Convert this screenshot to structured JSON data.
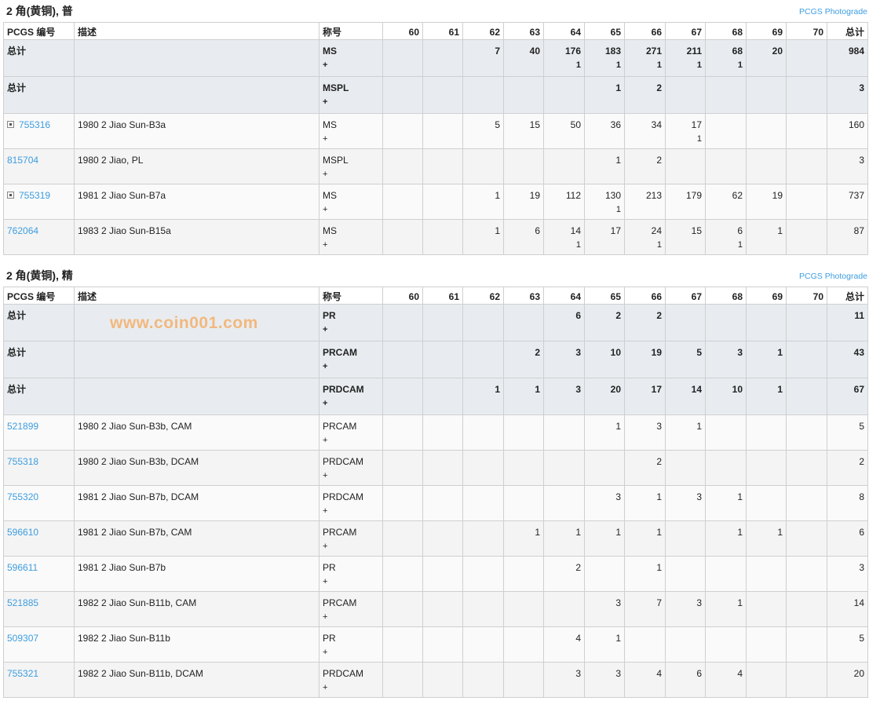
{
  "headers": [
    "PCGS 编号",
    "描述",
    "称号",
    "60",
    "61",
    "62",
    "63",
    "64",
    "65",
    "66",
    "67",
    "68",
    "69",
    "70",
    "总计"
  ],
  "photograde_label": "PCGS Photograde",
  "watermark": "www.coin001.com",
  "colors": {
    "link": "#3d9de0",
    "total_row_bg": "#e8ecf0",
    "watermark": "#f89632"
  },
  "sections": [
    {
      "title": "2 角(黄铜), 普",
      "rows": [
        {
          "type": "total",
          "id": "总计",
          "desc": "",
          "designation": "MS",
          "dplus": "+",
          "main": [
            "",
            "",
            "7",
            "40",
            "176",
            "183",
            "271",
            "211",
            "68",
            "20",
            ""
          ],
          "plus": [
            "",
            "",
            "",
            "",
            "1",
            "1",
            "1",
            "1",
            "1",
            "",
            ""
          ],
          "total": "984"
        },
        {
          "type": "total",
          "id": "总计",
          "desc": "",
          "designation": "MSPL",
          "dplus": "+",
          "main": [
            "",
            "",
            "",
            "",
            "",
            "1",
            "2",
            "",
            "",
            "",
            ""
          ],
          "plus": [
            "",
            "",
            "",
            "",
            "",
            "",
            "",
            "",
            "",
            "",
            ""
          ],
          "total": "3"
        },
        {
          "type": "data",
          "id": "755316",
          "expand": true,
          "desc": "1980 2 Jiao Sun-B3a",
          "designation": "MS",
          "dplus": "+",
          "main": [
            "",
            "",
            "5",
            "15",
            "50",
            "36",
            "34",
            "17",
            "",
            "",
            ""
          ],
          "plus": [
            "",
            "",
            "",
            "",
            "",
            "",
            "",
            "1",
            "",
            "",
            ""
          ],
          "total": "160"
        },
        {
          "type": "data",
          "id": "815704",
          "expand": false,
          "desc": "1980 2 Jiao, PL",
          "designation": "MSPL",
          "dplus": "+",
          "main": [
            "",
            "",
            "",
            "",
            "",
            "1",
            "2",
            "",
            "",
            "",
            ""
          ],
          "plus": [
            "",
            "",
            "",
            "",
            "",
            "",
            "",
            "",
            "",
            "",
            ""
          ],
          "total": "3"
        },
        {
          "type": "data",
          "id": "755319",
          "expand": true,
          "desc": "1981 2 Jiao Sun-B7a",
          "designation": "MS",
          "dplus": "+",
          "main": [
            "",
            "",
            "1",
            "19",
            "112",
            "130",
            "213",
            "179",
            "62",
            "19",
            ""
          ],
          "plus": [
            "",
            "",
            "",
            "",
            "",
            "1",
            "",
            "",
            "",
            "",
            ""
          ],
          "total": "737"
        },
        {
          "type": "data",
          "id": "762064",
          "expand": false,
          "desc": "1983 2 Jiao Sun-B15a",
          "designation": "MS",
          "dplus": "+",
          "main": [
            "",
            "",
            "1",
            "6",
            "14",
            "17",
            "24",
            "15",
            "6",
            "1",
            ""
          ],
          "plus": [
            "",
            "",
            "",
            "",
            "1",
            "",
            "1",
            "",
            "1",
            "",
            ""
          ],
          "total": "87"
        }
      ]
    },
    {
      "title": "2 角(黄铜), 精",
      "rows": [
        {
          "type": "total",
          "id": "总计",
          "desc": "",
          "designation": "PR",
          "dplus": "+",
          "main": [
            "",
            "",
            "",
            "",
            "6",
            "2",
            "2",
            "",
            "",
            "",
            ""
          ],
          "plus": [
            "",
            "",
            "",
            "",
            "",
            "",
            "",
            "",
            "",
            "",
            ""
          ],
          "total": "11"
        },
        {
          "type": "total",
          "id": "总计",
          "desc": "",
          "designation": "PRCAM",
          "dplus": "+",
          "main": [
            "",
            "",
            "",
            "2",
            "3",
            "10",
            "19",
            "5",
            "3",
            "1",
            ""
          ],
          "plus": [
            "",
            "",
            "",
            "",
            "",
            "",
            "",
            "",
            "",
            "",
            ""
          ],
          "total": "43"
        },
        {
          "type": "total",
          "id": "总计",
          "desc": "",
          "designation": "PRDCAM",
          "dplus": "+",
          "main": [
            "",
            "",
            "1",
            "1",
            "3",
            "20",
            "17",
            "14",
            "10",
            "1",
            ""
          ],
          "plus": [
            "",
            "",
            "",
            "",
            "",
            "",
            "",
            "",
            "",
            "",
            ""
          ],
          "total": "67"
        },
        {
          "type": "data",
          "id": "521899",
          "expand": false,
          "desc": "1980 2 Jiao Sun-B3b, CAM",
          "designation": "PRCAM",
          "dplus": "+",
          "main": [
            "",
            "",
            "",
            "",
            "",
            "1",
            "3",
            "1",
            "",
            "",
            ""
          ],
          "plus": [
            "",
            "",
            "",
            "",
            "",
            "",
            "",
            "",
            "",
            "",
            ""
          ],
          "total": "5"
        },
        {
          "type": "data",
          "id": "755318",
          "expand": false,
          "desc": "1980 2 Jiao Sun-B3b, DCAM",
          "designation": "PRDCAM",
          "dplus": "+",
          "main": [
            "",
            "",
            "",
            "",
            "",
            "",
            "2",
            "",
            "",
            "",
            ""
          ],
          "plus": [
            "",
            "",
            "",
            "",
            "",
            "",
            "",
            "",
            "",
            "",
            ""
          ],
          "total": "2"
        },
        {
          "type": "data",
          "id": "755320",
          "expand": false,
          "desc": "1981 2 Jiao Sun-B7b, DCAM",
          "designation": "PRDCAM",
          "dplus": "+",
          "main": [
            "",
            "",
            "",
            "",
            "",
            "3",
            "1",
            "3",
            "1",
            "",
            ""
          ],
          "plus": [
            "",
            "",
            "",
            "",
            "",
            "",
            "",
            "",
            "",
            "",
            ""
          ],
          "total": "8"
        },
        {
          "type": "data",
          "id": "596610",
          "expand": false,
          "desc": "1981 2 Jiao Sun-B7b, CAM",
          "designation": "PRCAM",
          "dplus": "+",
          "main": [
            "",
            "",
            "",
            "1",
            "1",
            "1",
            "1",
            "",
            "1",
            "1",
            ""
          ],
          "plus": [
            "",
            "",
            "",
            "",
            "",
            "",
            "",
            "",
            "",
            "",
            ""
          ],
          "total": "6"
        },
        {
          "type": "data",
          "id": "596611",
          "expand": false,
          "desc": "1981 2 Jiao Sun-B7b",
          "designation": "PR",
          "dplus": "+",
          "main": [
            "",
            "",
            "",
            "",
            "2",
            "",
            "1",
            "",
            "",
            "",
            ""
          ],
          "plus": [
            "",
            "",
            "",
            "",
            "",
            "",
            "",
            "",
            "",
            "",
            ""
          ],
          "total": "3"
        },
        {
          "type": "data",
          "id": "521885",
          "expand": false,
          "desc": "1982 2 Jiao Sun-B11b, CAM",
          "designation": "PRCAM",
          "dplus": "+",
          "main": [
            "",
            "",
            "",
            "",
            "",
            "3",
            "7",
            "3",
            "1",
            "",
            ""
          ],
          "plus": [
            "",
            "",
            "",
            "",
            "",
            "",
            "",
            "",
            "",
            "",
            ""
          ],
          "total": "14"
        },
        {
          "type": "data",
          "id": "509307",
          "expand": false,
          "desc": "1982 2 Jiao Sun-B11b",
          "designation": "PR",
          "dplus": "+",
          "main": [
            "",
            "",
            "",
            "",
            "4",
            "1",
            "",
            "",
            "",
            "",
            ""
          ],
          "plus": [
            "",
            "",
            "",
            "",
            "",
            "",
            "",
            "",
            "",
            "",
            ""
          ],
          "total": "5"
        },
        {
          "type": "data",
          "id": "755321",
          "expand": false,
          "desc": "1982 2 Jiao Sun-B11b, DCAM",
          "designation": "PRDCAM",
          "dplus": "+",
          "main": [
            "",
            "",
            "",
            "",
            "3",
            "3",
            "4",
            "6",
            "4",
            "",
            ""
          ],
          "plus": [
            "",
            "",
            "",
            "",
            "",
            "",
            "",
            "",
            "",
            "",
            ""
          ],
          "total": "20"
        }
      ]
    }
  ]
}
